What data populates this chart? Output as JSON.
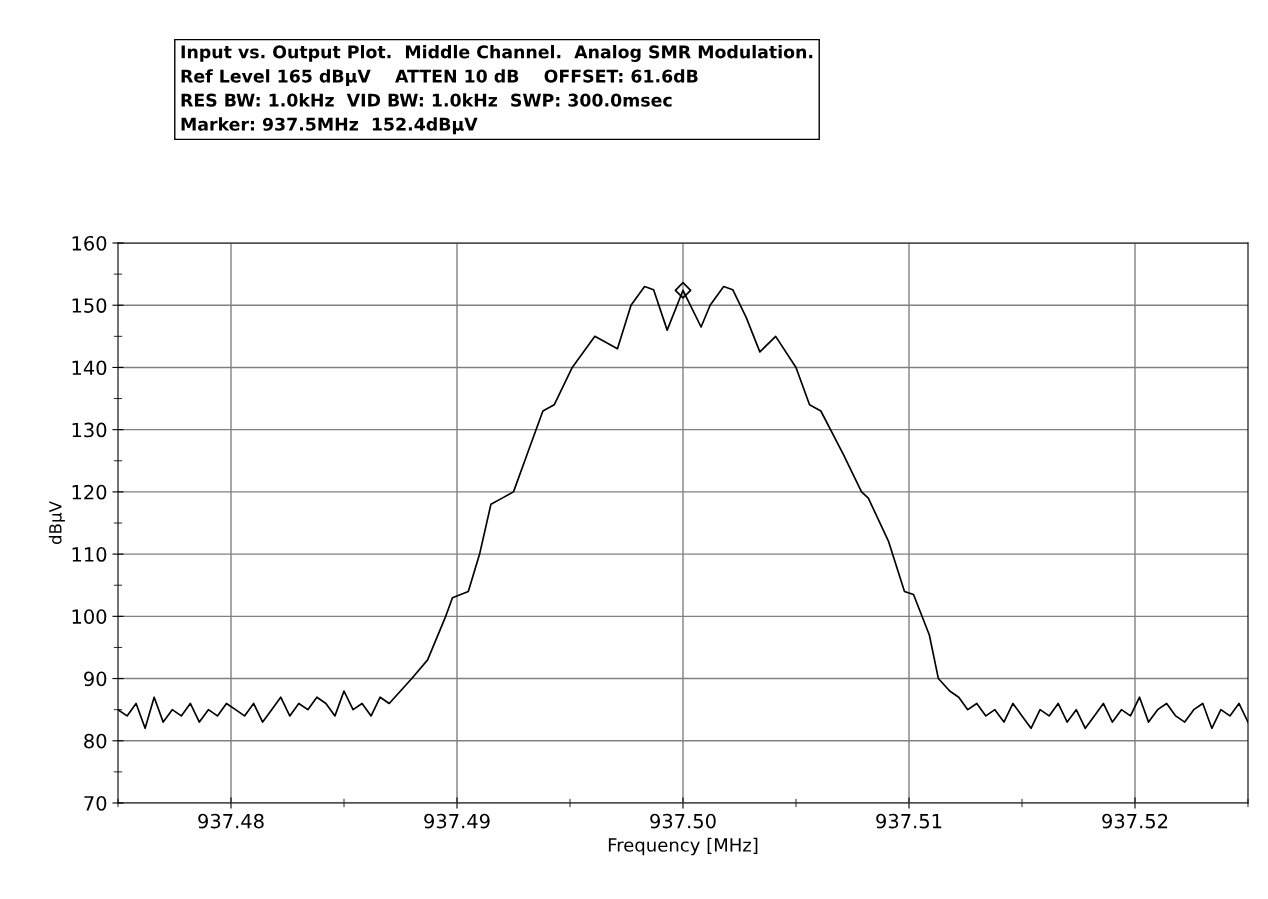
{
  "chart_data": {
    "type": "line",
    "title": "Input vs. Output Plot.  Middle Channel.  Analog SMR Modulation.",
    "annotations": [
      "Ref Level 165 dBµV    ATTEN 10 dB    OFFSET: 61.6dB",
      "RES BW: 1.0kHz  VID BW: 1.0kHz  SWP: 300.0msec",
      "Marker: 937.5MHz  152.4dBµV"
    ],
    "xlabel": "Frequency [MHz]",
    "ylabel": "dBµV",
    "xlim": [
      937.475,
      937.525
    ],
    "ylim": [
      70,
      160
    ],
    "xticks": [
      {
        "value": 937.48,
        "label": "937.48"
      },
      {
        "value": 937.49,
        "label": "937.49"
      },
      {
        "value": 937.5,
        "label": "937.50"
      },
      {
        "value": 937.51,
        "label": "937.51"
      },
      {
        "value": 937.52,
        "label": "937.52"
      }
    ],
    "yticks": [
      70,
      80,
      90,
      100,
      110,
      120,
      130,
      140,
      150,
      160
    ],
    "grid": true,
    "marker": "none",
    "line_style": "solid",
    "series": [
      {
        "color": "#000000",
        "x": [
          937.475,
          937.4754,
          937.4758,
          937.4762,
          937.4766,
          937.477,
          937.4774,
          937.4778,
          937.4782,
          937.4786,
          937.479,
          937.4794,
          937.4798,
          937.4802,
          937.4806,
          937.481,
          937.4814,
          937.4818,
          937.4822,
          937.4826,
          937.483,
          937.4834,
          937.4838,
          937.4842,
          937.4846,
          937.485,
          937.4854,
          937.4858,
          937.4862,
          937.4866,
          937.487,
          937.488,
          937.4887,
          937.4895,
          937.4898,
          937.4905,
          937.491,
          937.4915,
          937.492,
          937.4925,
          937.4932,
          937.4938,
          937.4943,
          937.4951,
          937.4961,
          937.4971,
          937.4977,
          937.4983,
          937.4987,
          937.4993,
          937.5,
          937.5008,
          937.5012,
          937.5018,
          937.5022,
          937.5028,
          937.5034,
          937.5041,
          937.505,
          937.5056,
          937.5061,
          937.5071,
          937.5079,
          937.5082,
          937.5091,
          937.5098,
          937.5102,
          937.5109,
          937.5113,
          937.5118,
          937.5122,
          937.5126,
          937.513,
          937.5134,
          937.5138,
          937.5142,
          937.5146,
          937.515,
          937.5154,
          937.5158,
          937.5162,
          937.5166,
          937.517,
          937.5174,
          937.5178,
          937.5182,
          937.5186,
          937.519,
          937.5194,
          937.5198,
          937.5202,
          937.5206,
          937.521,
          937.5214,
          937.5218,
          937.5222,
          937.5226,
          937.523,
          937.5234,
          937.5238,
          937.5242,
          937.5246,
          937.525
        ],
        "values": [
          85,
          84,
          86,
          82,
          87,
          83,
          85,
          84,
          86,
          83,
          85,
          84,
          86,
          85,
          84,
          86,
          83,
          85,
          87,
          84,
          86,
          85,
          87,
          86,
          84,
          88,
          85,
          86,
          84,
          87,
          86,
          90,
          93,
          100,
          103,
          104,
          110,
          118,
          119,
          120,
          127,
          133,
          134,
          140,
          145,
          143,
          150,
          153,
          152.5,
          146,
          152.4,
          146.5,
          150,
          153,
          152.5,
          148,
          142.5,
          145,
          140,
          134,
          133,
          126,
          120,
          119,
          112,
          104,
          103.5,
          97,
          90,
          88,
          87,
          85,
          86,
          84,
          85,
          83,
          86,
          84,
          82,
          85,
          84,
          86,
          83,
          85,
          82,
          84,
          86,
          83,
          85,
          84,
          87,
          83,
          85,
          86,
          84,
          83,
          85,
          86,
          82,
          85,
          84,
          86,
          83
        ]
      },
      {
        "type": "scatter",
        "color": "#000000",
        "marker": "diamond",
        "x": [
          937.5
        ],
        "values": [
          152.4
        ]
      }
    ]
  }
}
